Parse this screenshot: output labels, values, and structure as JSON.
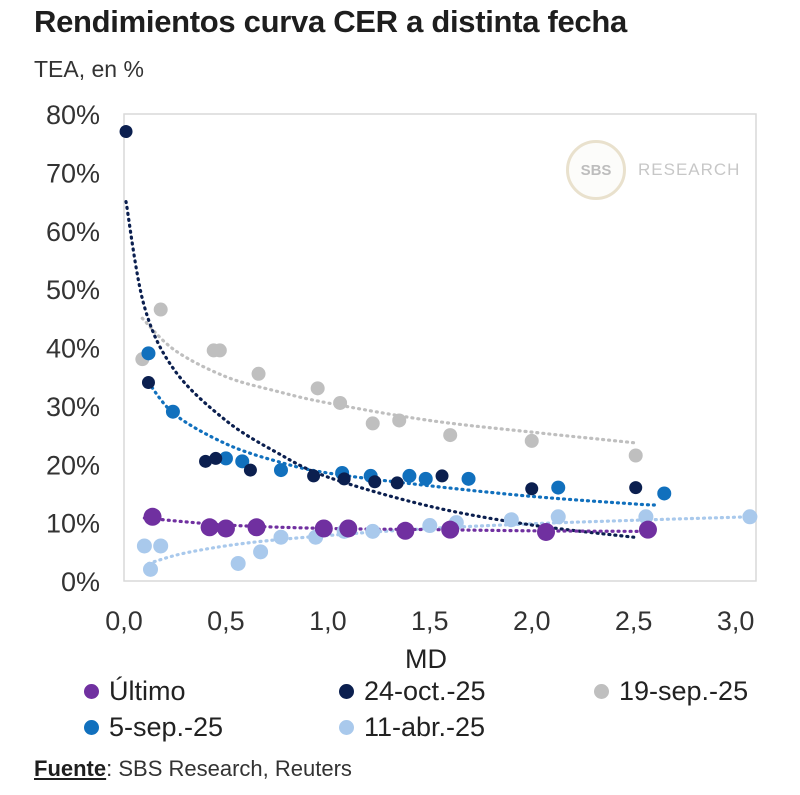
{
  "title": "Rendimientos curva CER a distinta fecha",
  "subtitle": "TEA, en %",
  "watermark": {
    "seal": "SBS",
    "text": "RESEARCH"
  },
  "source": {
    "key": "Fuente",
    "text": ": SBS Research, Reuters"
  },
  "colors": {
    "ultimo": "#7030a0",
    "oct24": "#0b1f4f",
    "sep19": "#bfbfbf",
    "sep5": "#1170bd",
    "abr11": "#a9c9ec",
    "frame": "#d9d9d9"
  },
  "chart_data": {
    "type": "scatter",
    "title": "Rendimientos curva CER a distinta fecha",
    "ylabel": "TEA, en %",
    "xlabel": "MD",
    "xlim": [
      0,
      3.1
    ],
    "ylim": [
      0,
      80
    ],
    "xticks": [
      "0,0",
      "0,5",
      "1,0",
      "1,5",
      "2,0",
      "2,5",
      "3,0"
    ],
    "xtick_values": [
      0,
      0.5,
      1.0,
      1.5,
      2.0,
      2.5,
      3.0
    ],
    "yticks": [
      "0%",
      "10%",
      "20%",
      "30%",
      "40%",
      "50%",
      "60%",
      "70%",
      "80%"
    ],
    "ytick_values": [
      0,
      10,
      20,
      30,
      40,
      50,
      60,
      70,
      80
    ],
    "grid": false,
    "legend_position": "bottom",
    "trendlines": "dotted logarithmic trendline per series",
    "series": [
      {
        "key": "ultimo",
        "name": "Último",
        "points": [
          [
            0.14,
            11.0
          ],
          [
            0.42,
            9.2
          ],
          [
            0.5,
            9.0
          ],
          [
            0.65,
            9.2
          ],
          [
            0.98,
            9.0
          ],
          [
            1.1,
            9.0
          ],
          [
            1.38,
            8.6
          ],
          [
            1.6,
            8.8
          ],
          [
            2.07,
            8.4
          ],
          [
            2.57,
            8.8
          ]
        ],
        "trend": [
          [
            0.1,
            10.8
          ],
          [
            0.5,
            9.6
          ],
          [
            1.0,
            9.0
          ],
          [
            1.5,
            8.8
          ],
          [
            2.0,
            8.6
          ],
          [
            2.57,
            8.5
          ]
        ]
      },
      {
        "key": "oct24",
        "name": "24-oct.-25",
        "points": [
          [
            0.01,
            77.0
          ],
          [
            0.12,
            34.0
          ],
          [
            0.4,
            20.5
          ],
          [
            0.45,
            21.0
          ],
          [
            0.62,
            19.0
          ],
          [
            0.93,
            18.0
          ],
          [
            1.08,
            17.5
          ],
          [
            1.23,
            17.0
          ],
          [
            1.34,
            16.8
          ],
          [
            1.56,
            18.0
          ],
          [
            2.0,
            15.8
          ],
          [
            2.51,
            16.0
          ]
        ],
        "trend": [
          [
            0.01,
            65.0
          ],
          [
            0.1,
            47.0
          ],
          [
            0.25,
            36.0
          ],
          [
            0.5,
            27.5
          ],
          [
            0.75,
            22.0
          ],
          [
            1.0,
            17.8
          ],
          [
            1.5,
            12.8
          ],
          [
            2.0,
            9.6
          ],
          [
            2.5,
            7.5
          ]
        ]
      },
      {
        "key": "sep19",
        "name": "19-sep.-25",
        "points": [
          [
            0.09,
            38.0
          ],
          [
            0.18,
            46.5
          ],
          [
            0.44,
            39.5
          ],
          [
            0.47,
            39.5
          ],
          [
            0.66,
            35.5
          ],
          [
            0.95,
            33.0
          ],
          [
            1.06,
            30.5
          ],
          [
            1.22,
            27.0
          ],
          [
            1.35,
            27.5
          ],
          [
            1.6,
            25.0
          ],
          [
            2.0,
            24.0
          ],
          [
            2.51,
            21.5
          ]
        ],
        "trend": [
          [
            0.09,
            45.0
          ],
          [
            0.25,
            39.5
          ],
          [
            0.5,
            35.0
          ],
          [
            0.75,
            32.5
          ],
          [
            1.0,
            30.5
          ],
          [
            1.5,
            27.5
          ],
          [
            2.0,
            25.5
          ],
          [
            2.5,
            23.7
          ]
        ]
      },
      {
        "key": "sep5",
        "name": "5-sep.-25",
        "points": [
          [
            0.12,
            39.0
          ],
          [
            0.24,
            29.0
          ],
          [
            0.5,
            21.0
          ],
          [
            0.58,
            20.5
          ],
          [
            0.77,
            19.0
          ],
          [
            1.07,
            18.5
          ],
          [
            1.21,
            18.0
          ],
          [
            1.4,
            18.0
          ],
          [
            1.48,
            17.5
          ],
          [
            1.69,
            17.5
          ],
          [
            2.13,
            16.0
          ],
          [
            2.65,
            15.0
          ]
        ],
        "trend": [
          [
            0.12,
            34.0
          ],
          [
            0.25,
            28.5
          ],
          [
            0.5,
            23.5
          ],
          [
            0.75,
            20.5
          ],
          [
            1.0,
            18.5
          ],
          [
            1.5,
            16.3
          ],
          [
            2.0,
            14.5
          ],
          [
            2.5,
            13.2
          ],
          [
            2.62,
            13.0
          ]
        ]
      },
      {
        "key": "abr11",
        "name": "11-abr.-25",
        "points": [
          [
            0.1,
            6.0
          ],
          [
            0.18,
            6.0
          ],
          [
            0.13,
            2.0
          ],
          [
            0.56,
            3.0
          ],
          [
            0.67,
            5.0
          ],
          [
            0.77,
            7.5
          ],
          [
            0.94,
            7.5
          ],
          [
            1.08,
            8.5
          ],
          [
            1.22,
            8.5
          ],
          [
            1.5,
            9.5
          ],
          [
            1.63,
            10.0
          ],
          [
            1.9,
            10.5
          ],
          [
            2.13,
            11.0
          ],
          [
            2.56,
            11.0
          ],
          [
            3.07,
            11.0
          ]
        ],
        "trend": [
          [
            0.12,
            3.0
          ],
          [
            0.3,
            4.8
          ],
          [
            0.6,
            6.5
          ],
          [
            1.0,
            7.8
          ],
          [
            1.5,
            9.0
          ],
          [
            2.0,
            9.8
          ],
          [
            2.5,
            10.4
          ],
          [
            3.07,
            11.0
          ]
        ]
      }
    ]
  },
  "legend": [
    {
      "key": "ultimo",
      "name": "Último"
    },
    {
      "key": "oct24",
      "name": "24-oct.-25"
    },
    {
      "key": "sep19",
      "name": "19-sep.-25"
    },
    {
      "key": "sep5",
      "name": "5-sep.-25"
    },
    {
      "key": "abr11",
      "name": "11-abr.-25"
    }
  ]
}
